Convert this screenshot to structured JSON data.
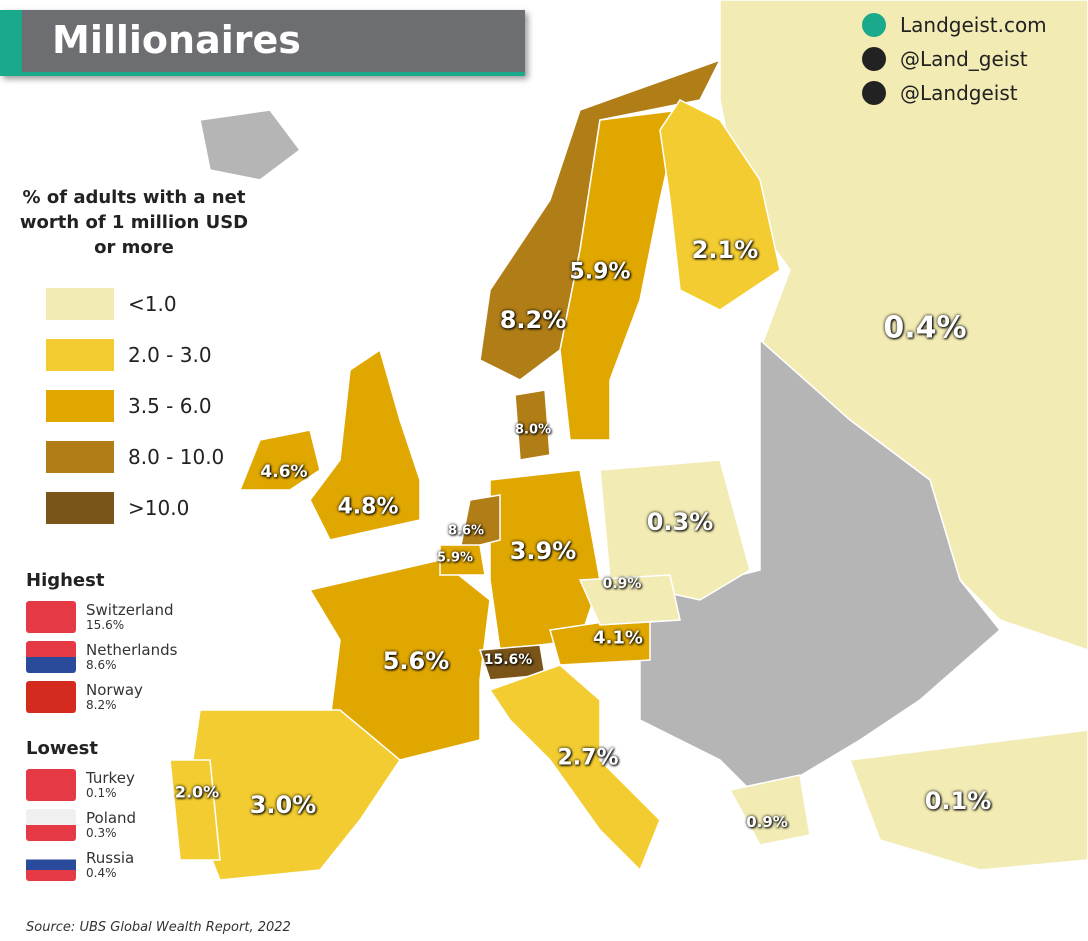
{
  "header": {
    "title": "Millionaires",
    "links": [
      "Landgeist.com",
      "@Land_geist",
      "@Landgeist"
    ]
  },
  "legend": {
    "title": "% of adults with a net worth of 1 million USD or more",
    "items": [
      {
        "label": "<1.0",
        "color": "#f2ebb4"
      },
      {
        "label": "2.0 - 3.0",
        "color": "#f2cc30"
      },
      {
        "label": "3.5 - 6.0",
        "color": "#e0a700"
      },
      {
        "label": "8.0 - 10.0",
        "color": "#b07d17"
      },
      {
        "label": ">10.0",
        "color": "#7a5419"
      }
    ]
  },
  "map_labels": [
    "0.4%",
    "2.1%",
    "5.9%",
    "8.2%",
    "8.0%",
    "4.6%",
    "4.8%",
    "8.6%",
    "5.9%",
    "3.9%",
    "0.3%",
    "0.9%",
    "5.6%",
    "15.6%",
    "4.1%",
    "2.7%",
    "2.0%",
    "3.0%",
    "0.9%",
    "0.1%"
  ],
  "highest": {
    "title": "Highest",
    "items": [
      {
        "country": "Switzerland",
        "value": "15.6%"
      },
      {
        "country": "Netherlands",
        "value": "8.6%"
      },
      {
        "country": "Norway",
        "value": "8.2%"
      }
    ]
  },
  "lowest": {
    "title": "Lowest",
    "items": [
      {
        "country": "Turkey",
        "value": "0.1%"
      },
      {
        "country": "Poland",
        "value": "0.3%"
      },
      {
        "country": "Russia",
        "value": "0.4%"
      }
    ]
  },
  "source": "Source: UBS Global Wealth Report, 2022"
}
